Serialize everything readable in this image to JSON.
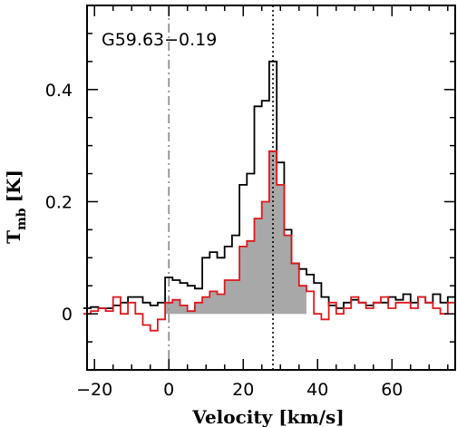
{
  "chart_data": {
    "type": "line",
    "title": "",
    "annotation": "G59.63−0.19",
    "xlabel": "Velocity [km/s]",
    "ylabel_main": "T",
    "ylabel_sub": "mb",
    "ylabel_unit": "[K]",
    "xlim": [
      -22,
      77
    ],
    "ylim": [
      -0.1,
      0.55
    ],
    "x_ticks": [
      -20,
      0,
      20,
      40,
      60
    ],
    "x_tick_labels": [
      "−20",
      "0",
      "20",
      "40",
      "60"
    ],
    "y_ticks": [
      0,
      0.2,
      0.4
    ],
    "y_tick_labels": [
      "0",
      "0.2",
      "0.4"
    ],
    "grid": false,
    "vlines": [
      {
        "x": 0,
        "style": "dash-dot",
        "color": "#888888"
      },
      {
        "x": 28,
        "style": "dotted",
        "color": "#000000"
      }
    ],
    "series": [
      {
        "style": "step",
        "color": "#000000",
        "x": [
          -22,
          -20,
          -18,
          -16,
          -14,
          -12,
          -10,
          -8,
          -6,
          -4,
          -2,
          0,
          2,
          4,
          6,
          8,
          10,
          12,
          14,
          16,
          18,
          20,
          22,
          24,
          26,
          28,
          30,
          32,
          34,
          36,
          38,
          40,
          42,
          44,
          46,
          48,
          50,
          52,
          54,
          56,
          58,
          60,
          62,
          64,
          66,
          68,
          70,
          72,
          74,
          76
        ],
        "y": [
          0.01,
          0.012,
          0.01,
          0.01,
          0.015,
          0.02,
          0.03,
          0.03,
          0.02,
          0.015,
          0.02,
          0.065,
          0.06,
          0.055,
          0.05,
          0.045,
          0.1,
          0.11,
          0.1,
          0.12,
          0.14,
          0.23,
          0.25,
          0.37,
          0.38,
          0.45,
          0.27,
          0.15,
          0.09,
          0.08,
          0.07,
          0.055,
          0.03,
          0.015,
          0.01,
          0.02,
          0.025,
          0.02,
          0.015,
          0.02,
          0.02,
          0.03,
          0.025,
          0.035,
          0.02,
          0.03,
          0.02,
          0.035,
          0.02,
          0.03
        ]
      },
      {
        "style": "step",
        "color": "#e0171e",
        "fill": "#a8a8a8",
        "fill_range": [
          0,
          36
        ],
        "x": [
          -22,
          -20,
          -18,
          -16,
          -14,
          -12,
          -10,
          -8,
          -6,
          -4,
          -2,
          0,
          2,
          4,
          6,
          8,
          10,
          12,
          14,
          16,
          18,
          20,
          22,
          24,
          26,
          28,
          30,
          32,
          34,
          36,
          38,
          40,
          42,
          44,
          46,
          48,
          50,
          52,
          54,
          56,
          58,
          60,
          62,
          64,
          66,
          68,
          70,
          72,
          74,
          76
        ],
        "y": [
          0.0,
          0.005,
          0.01,
          0.005,
          0.03,
          0.0,
          0.02,
          0.0,
          -0.02,
          -0.03,
          -0.01,
          0.02,
          0.025,
          0.015,
          0.005,
          0.02,
          0.03,
          0.04,
          0.035,
          0.06,
          0.06,
          0.12,
          0.13,
          0.17,
          0.2,
          0.29,
          0.23,
          0.14,
          0.09,
          0.05,
          0.04,
          0.0,
          -0.01,
          0.02,
          0.0,
          0.01,
          0.03,
          0.02,
          0.01,
          0.02,
          0.03,
          0.01,
          0.02,
          0.02,
          0.01,
          0.03,
          0.02,
          0.01,
          0.0,
          0.02
        ]
      }
    ]
  }
}
